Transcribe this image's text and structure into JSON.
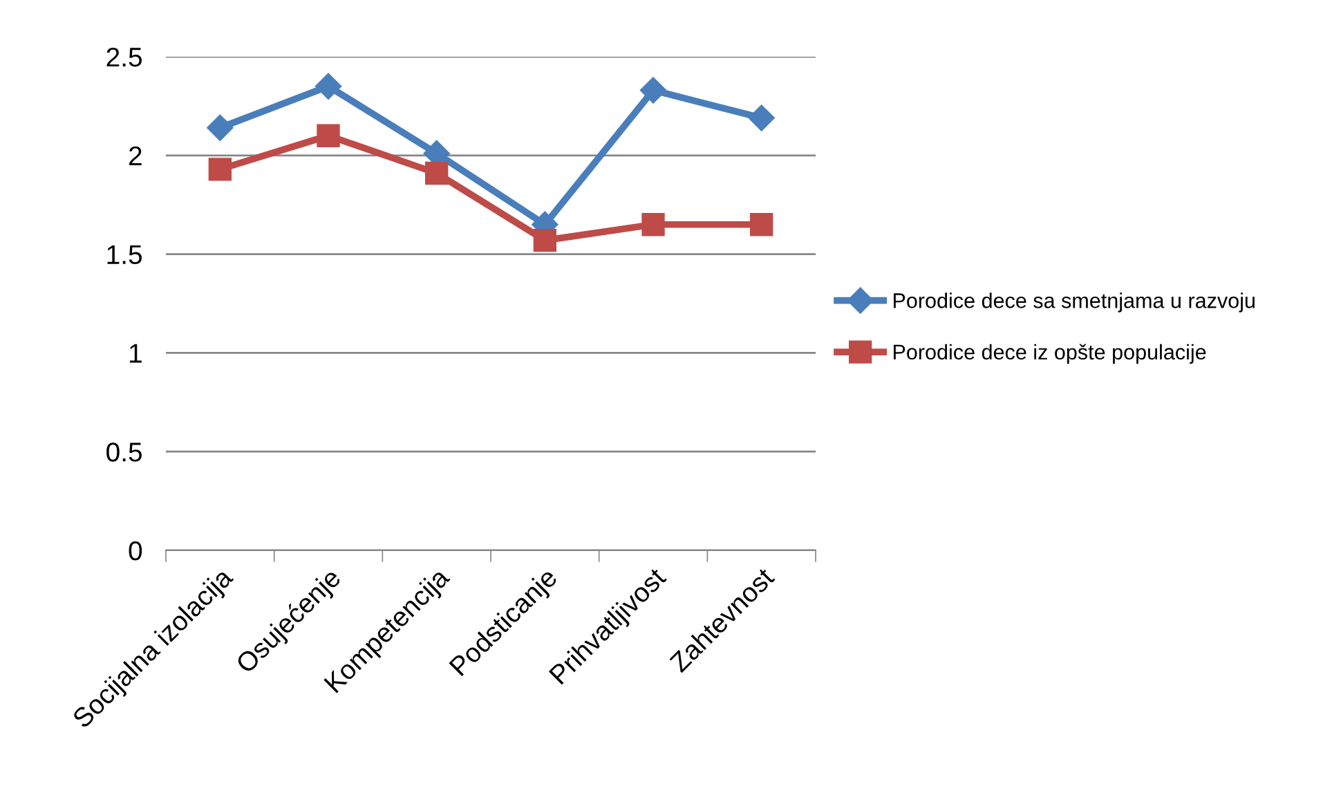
{
  "chart_data": {
    "type": "line",
    "categories": [
      "Socijalna izolacija",
      "Osujećenje",
      "Kompetencija",
      "Podsticanje",
      "Prihvatljivost",
      "Zahtevnost"
    ],
    "series": [
      {
        "name": "Porodice dece sa smetnjama u razvoju",
        "color": "#4a7ebb",
        "marker": "diamond",
        "values": [
          2.14,
          2.35,
          2.01,
          1.65,
          2.33,
          2.19
        ]
      },
      {
        "name": "Porodice dece iz opšte populacije",
        "color": "#be4b48",
        "marker": "square",
        "values": [
          1.93,
          2.1,
          1.91,
          1.57,
          1.65,
          1.65
        ]
      }
    ],
    "ylim": [
      0,
      2.5
    ],
    "yticks": [
      0,
      0.5,
      1,
      1.5,
      2,
      2.5
    ],
    "grid": "y",
    "legend": "right",
    "line_style": "solid"
  }
}
